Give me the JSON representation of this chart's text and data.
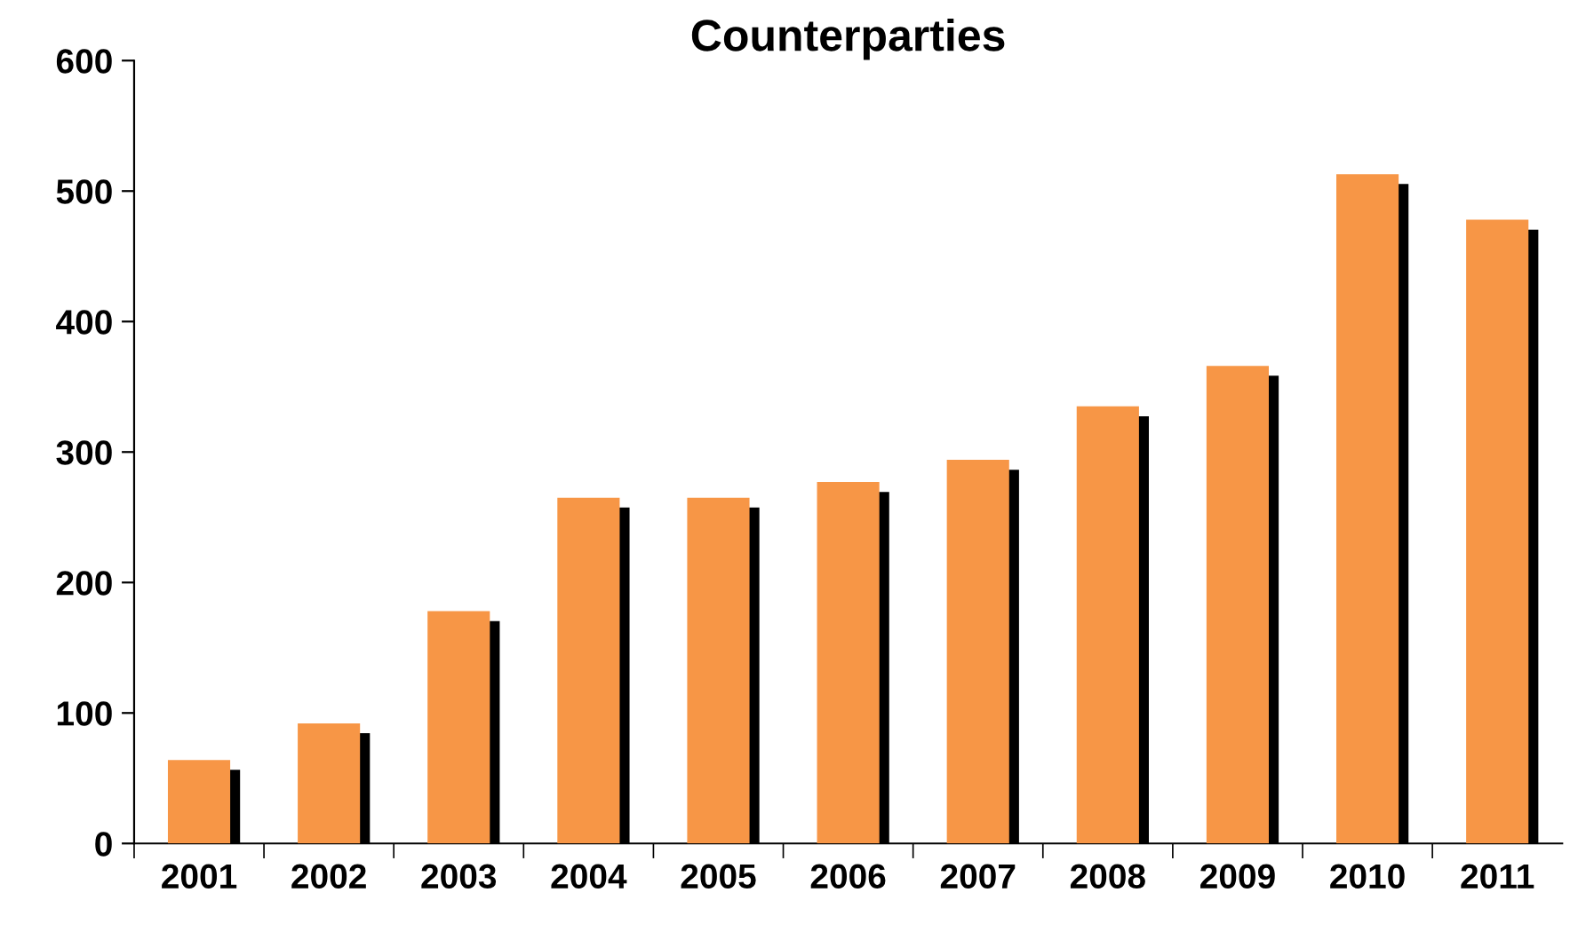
{
  "chart_data": {
    "type": "bar",
    "title": "Counterparties",
    "categories": [
      "2001",
      "2002",
      "2003",
      "2004",
      "2005",
      "2006",
      "2007",
      "2008",
      "2009",
      "2010",
      "2011"
    ],
    "values": [
      64,
      92,
      178,
      265,
      265,
      277,
      294,
      335,
      366,
      513,
      478
    ],
    "color": "#f79646",
    "ylim": [
      0,
      600
    ],
    "yticks": [
      0,
      100,
      200,
      300,
      400,
      500,
      600
    ],
    "grid": false,
    "legend": false
  }
}
